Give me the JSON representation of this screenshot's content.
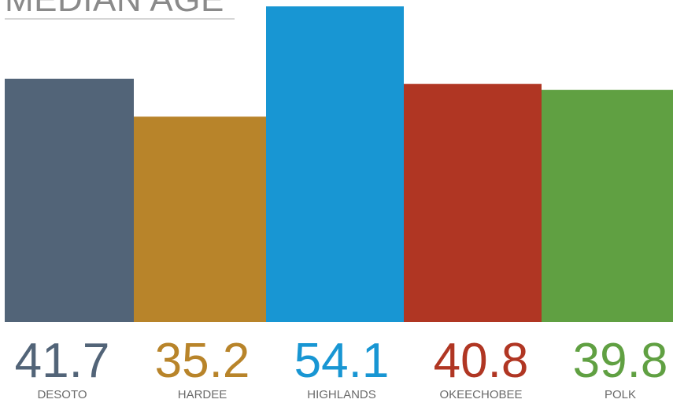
{
  "chart_data": {
    "type": "bar",
    "title": "MEDIAN AGE",
    "categories": [
      "DESOTO",
      "HARDEE",
      "HIGHLANDS",
      "OKEECHOBEE",
      "POLK"
    ],
    "values": [
      41.7,
      35.2,
      54.1,
      40.8,
      39.8
    ],
    "value_labels": [
      "41.7",
      "35.2",
      "54.1",
      "40.8",
      "39.8"
    ],
    "colors": [
      "#526478",
      "#b8842a",
      "#1896d3",
      "#b03623",
      "#60a042"
    ],
    "grid": false,
    "legend": "none"
  }
}
